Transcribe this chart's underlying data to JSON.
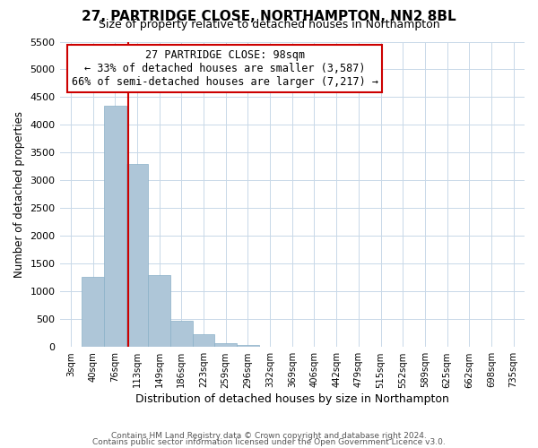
{
  "title": "27, PARTRIDGE CLOSE, NORTHAMPTON, NN2 8BL",
  "subtitle": "Size of property relative to detached houses in Northampton",
  "xlabel": "Distribution of detached houses by size in Northampton",
  "ylabel": "Number of detached properties",
  "bar_color": "#aec6d8",
  "bar_edge_color": "#8ab0c8",
  "marker_line_color": "#cc0000",
  "categories": [
    "3sqm",
    "40sqm",
    "76sqm",
    "113sqm",
    "149sqm",
    "186sqm",
    "223sqm",
    "259sqm",
    "296sqm",
    "332sqm",
    "369sqm",
    "406sqm",
    "442sqm",
    "479sqm",
    "515sqm",
    "552sqm",
    "589sqm",
    "625sqm",
    "662sqm",
    "698sqm",
    "735sqm"
  ],
  "values": [
    0,
    1270,
    4350,
    3290,
    1290,
    480,
    230,
    65,
    40,
    0,
    0,
    0,
    0,
    0,
    0,
    0,
    0,
    0,
    0,
    0,
    0
  ],
  "ylim": [
    0,
    5500
  ],
  "yticks": [
    0,
    500,
    1000,
    1500,
    2000,
    2500,
    3000,
    3500,
    4000,
    4500,
    5000,
    5500
  ],
  "annotation_title": "27 PARTRIDGE CLOSE: 98sqm",
  "annotation_line1": "← 33% of detached houses are smaller (3,587)",
  "annotation_line2": "66% of semi-detached houses are larger (7,217) →",
  "footer1": "Contains HM Land Registry data © Crown copyright and database right 2024.",
  "footer2": "Contains public sector information licensed under the Open Government Licence v3.0.",
  "background_color": "#ffffff",
  "grid_color": "#c8d8e8"
}
